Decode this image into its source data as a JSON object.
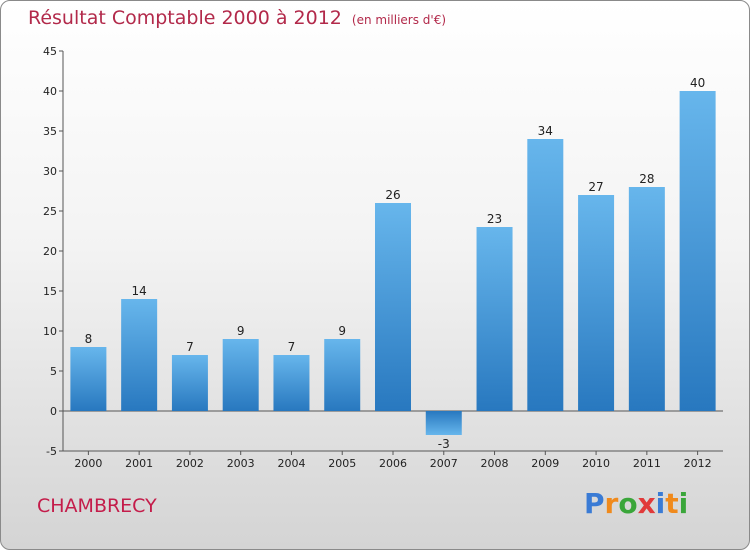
{
  "title": "Résultat Comptable 2000 à 2012",
  "subtitle": "(en milliers d'€)",
  "commune": "CHAMBRECY",
  "logo": {
    "text": "Proxiti",
    "letters": [
      {
        "ch": "P",
        "color": "#3a7bd5"
      },
      {
        "ch": "r",
        "color": "#f08a1c"
      },
      {
        "ch": "o",
        "color": "#3aa63a"
      },
      {
        "ch": "x",
        "color": "#e13a3a"
      },
      {
        "ch": "i",
        "color": "#3a7bd5"
      },
      {
        "ch": "t",
        "color": "#f08a1c"
      },
      {
        "ch": "i",
        "color": "#3aa63a"
      }
    ]
  },
  "colors": {
    "bar_light": "#67b6ec",
    "bar_dark": "#2878bf",
    "title": "#b2294a"
  },
  "chart_data": {
    "type": "bar",
    "title": "Résultat Comptable 2000 à 2012",
    "xlabel": "",
    "ylabel": "",
    "ylim": [
      -5,
      45
    ],
    "yticks": [
      -5,
      0,
      5,
      10,
      15,
      20,
      25,
      30,
      35,
      40,
      45
    ],
    "grid": false,
    "categories": [
      "2000",
      "2001",
      "2002",
      "2003",
      "2004",
      "2005",
      "2006",
      "2007",
      "2008",
      "2009",
      "2010",
      "2011",
      "2012"
    ],
    "values": [
      8,
      14,
      7,
      9,
      7,
      9,
      26,
      -3,
      23,
      34,
      27,
      28,
      40
    ]
  }
}
